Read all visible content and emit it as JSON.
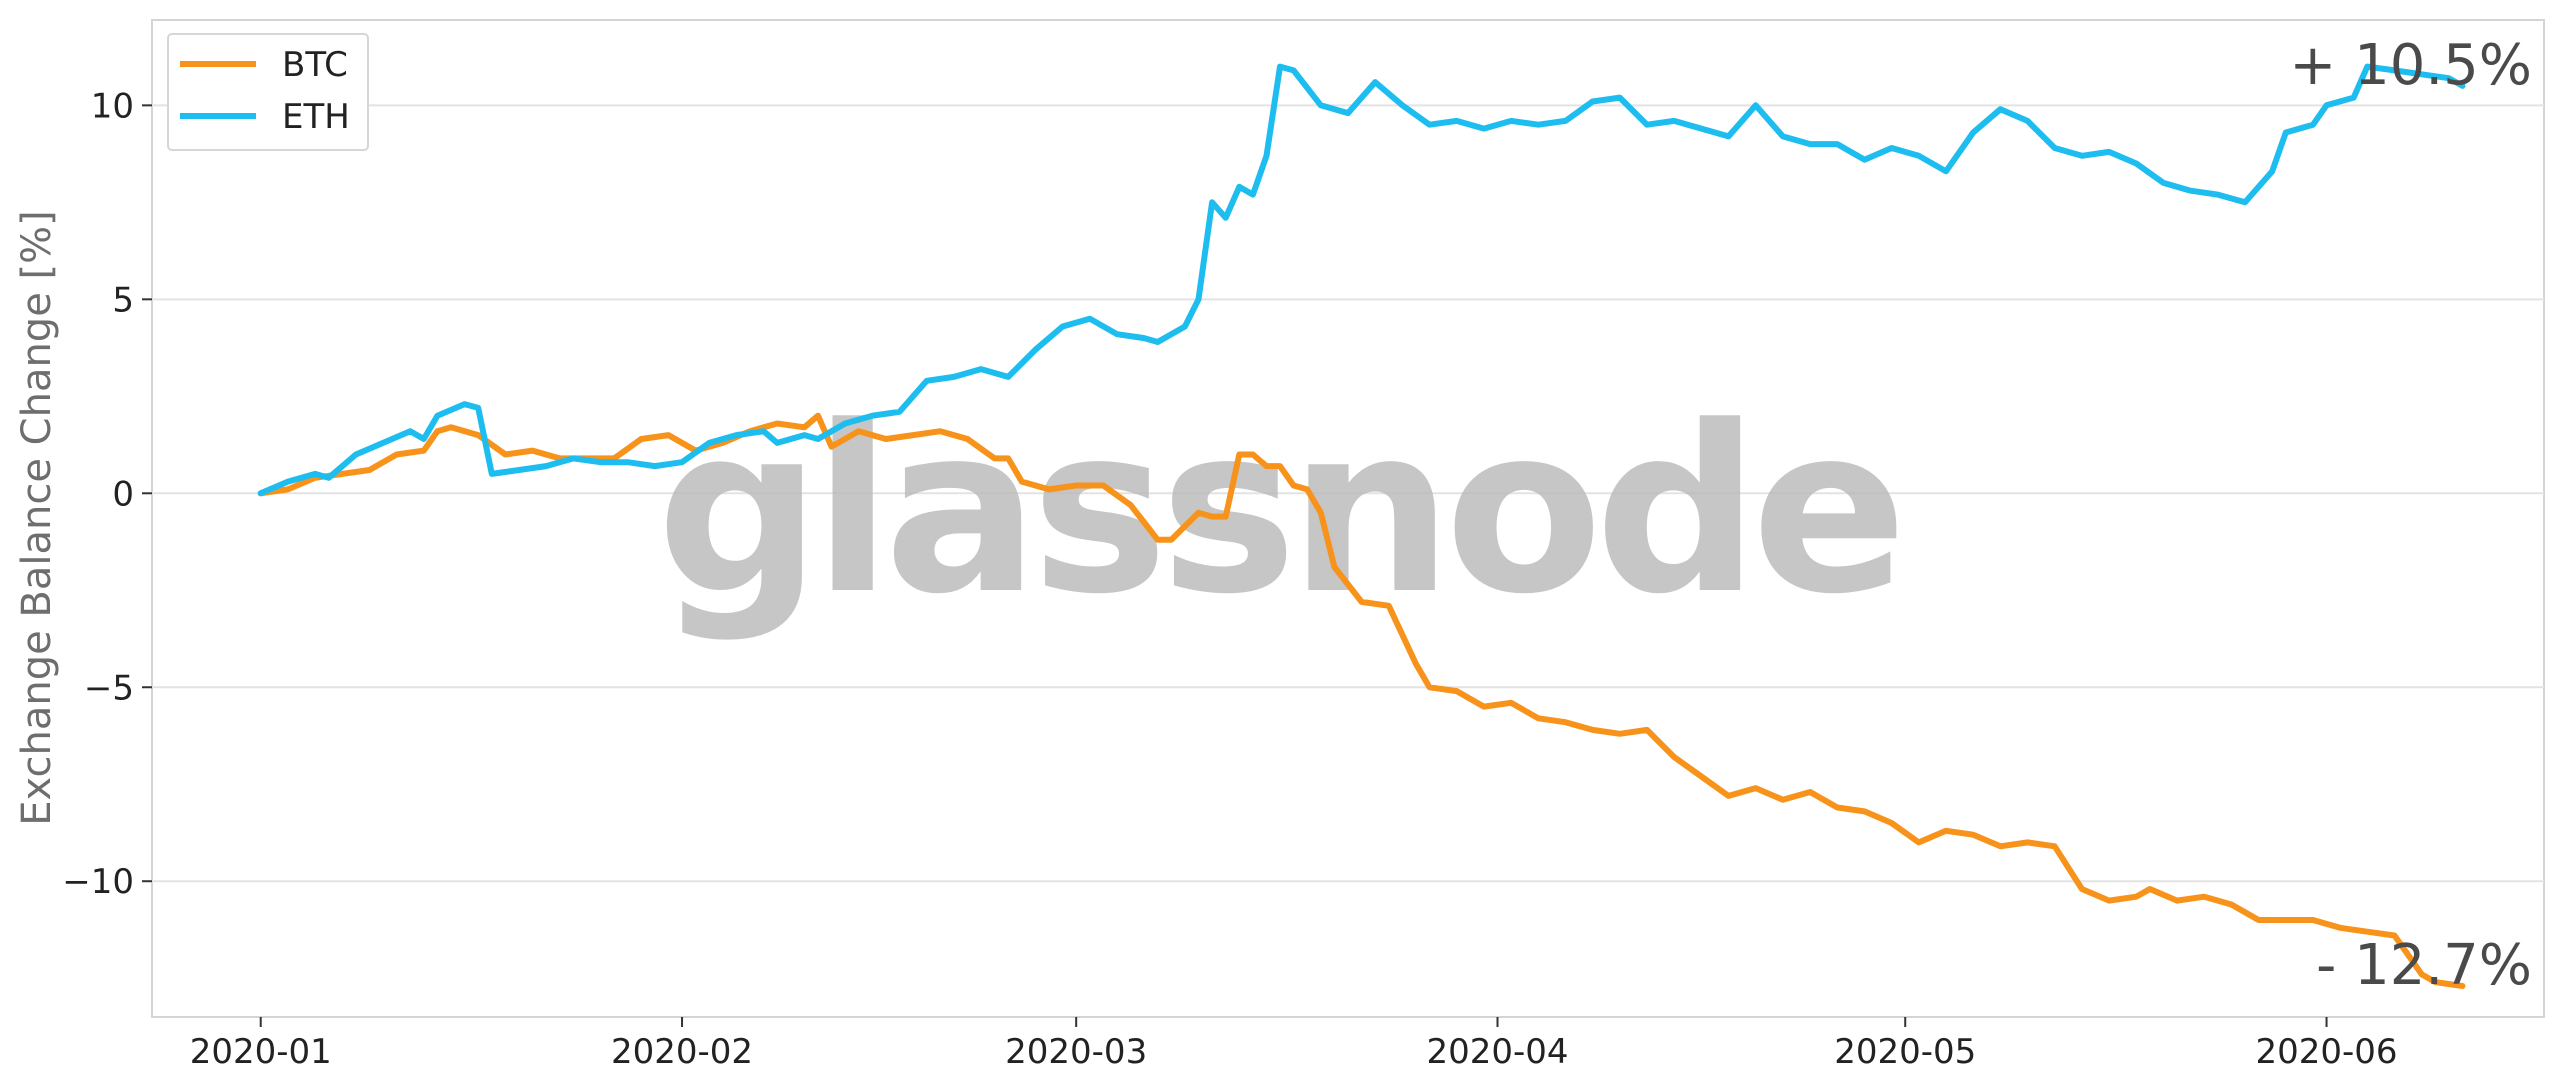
{
  "chart_data": {
    "type": "line",
    "title": "",
    "xlabel": "",
    "ylabel": "Exchange Balance Change [%]",
    "x_ticks": [
      "2020-01-01",
      "2020-02-01",
      "2020-03-01",
      "2020-04-01",
      "2020-05-01",
      "2020-06-01"
    ],
    "x_tick_labels": [
      "2020-01",
      "2020-02",
      "2020-03",
      "2020-04",
      "2020-05",
      "2020-06"
    ],
    "y_ticks": [
      10,
      5,
      0,
      -5,
      -10
    ],
    "y_tick_labels": [
      "10",
      "5",
      "0",
      "−5",
      "−10"
    ],
    "xlim": [
      "2019-12-24",
      "2020-06-17"
    ],
    "ylim": [
      -13.5,
      12.2
    ],
    "grid": "horizontal",
    "legend_position": "top-left",
    "watermark": "glassnode",
    "colors": {
      "BTC": "#f7931a",
      "ETH": "#1ebdf0"
    },
    "series": [
      {
        "name": "BTC",
        "points": [
          [
            "2020-01-01",
            0.0
          ],
          [
            "2020-01-03",
            0.1
          ],
          [
            "2020-01-05",
            0.4
          ],
          [
            "2020-01-07",
            0.5
          ],
          [
            "2020-01-09",
            0.6
          ],
          [
            "2020-01-11",
            1.0
          ],
          [
            "2020-01-13",
            1.1
          ],
          [
            "2020-01-14",
            1.6
          ],
          [
            "2020-01-15",
            1.7
          ],
          [
            "2020-01-17",
            1.5
          ],
          [
            "2020-01-19",
            1.0
          ],
          [
            "2020-01-21",
            1.1
          ],
          [
            "2020-01-23",
            0.9
          ],
          [
            "2020-01-25",
            0.9
          ],
          [
            "2020-01-27",
            0.9
          ],
          [
            "2020-01-29",
            1.4
          ],
          [
            "2020-01-31",
            1.5
          ],
          [
            "2020-02-02",
            1.1
          ],
          [
            "2020-02-04",
            1.3
          ],
          [
            "2020-02-06",
            1.6
          ],
          [
            "2020-02-08",
            1.8
          ],
          [
            "2020-02-10",
            1.7
          ],
          [
            "2020-02-11",
            2.0
          ],
          [
            "2020-02-12",
            1.2
          ],
          [
            "2020-02-14",
            1.6
          ],
          [
            "2020-02-16",
            1.4
          ],
          [
            "2020-02-18",
            1.5
          ],
          [
            "2020-02-20",
            1.6
          ],
          [
            "2020-02-22",
            1.4
          ],
          [
            "2020-02-24",
            0.9
          ],
          [
            "2020-02-25",
            0.9
          ],
          [
            "2020-02-26",
            0.3
          ],
          [
            "2020-02-28",
            0.1
          ],
          [
            "2020-03-01",
            0.2
          ],
          [
            "2020-03-03",
            0.2
          ],
          [
            "2020-03-05",
            -0.3
          ],
          [
            "2020-03-07",
            -1.2
          ],
          [
            "2020-03-08",
            -1.2
          ],
          [
            "2020-03-10",
            -0.5
          ],
          [
            "2020-03-11",
            -0.6
          ],
          [
            "2020-03-12",
            -0.6
          ],
          [
            "2020-03-13",
            1.0
          ],
          [
            "2020-03-14",
            1.0
          ],
          [
            "2020-03-15",
            0.7
          ],
          [
            "2020-03-16",
            0.7
          ],
          [
            "2020-03-17",
            0.2
          ],
          [
            "2020-03-18",
            0.1
          ],
          [
            "2020-03-19",
            -0.5
          ],
          [
            "2020-03-20",
            -1.9
          ],
          [
            "2020-03-22",
            -2.8
          ],
          [
            "2020-03-24",
            -2.9
          ],
          [
            "2020-03-26",
            -4.4
          ],
          [
            "2020-03-27",
            -5.0
          ],
          [
            "2020-03-29",
            -5.1
          ],
          [
            "2020-03-31",
            -5.5
          ],
          [
            "2020-04-02",
            -5.4
          ],
          [
            "2020-04-04",
            -5.8
          ],
          [
            "2020-04-06",
            -5.9
          ],
          [
            "2020-04-08",
            -6.1
          ],
          [
            "2020-04-10",
            -6.2
          ],
          [
            "2020-04-12",
            -6.1
          ],
          [
            "2020-04-14",
            -6.8
          ],
          [
            "2020-04-16",
            -7.3
          ],
          [
            "2020-04-18",
            -7.8
          ],
          [
            "2020-04-20",
            -7.6
          ],
          [
            "2020-04-22",
            -7.9
          ],
          [
            "2020-04-24",
            -7.7
          ],
          [
            "2020-04-26",
            -8.1
          ],
          [
            "2020-04-28",
            -8.2
          ],
          [
            "2020-04-30",
            -8.5
          ],
          [
            "2020-05-02",
            -9.0
          ],
          [
            "2020-05-04",
            -8.7
          ],
          [
            "2020-05-06",
            -8.8
          ],
          [
            "2020-05-08",
            -9.1
          ],
          [
            "2020-05-10",
            -9.0
          ],
          [
            "2020-05-12",
            -9.1
          ],
          [
            "2020-05-14",
            -10.2
          ],
          [
            "2020-05-16",
            -10.5
          ],
          [
            "2020-05-18",
            -10.4
          ],
          [
            "2020-05-19",
            -10.2
          ],
          [
            "2020-05-21",
            -10.5
          ],
          [
            "2020-05-23",
            -10.4
          ],
          [
            "2020-05-25",
            -10.6
          ],
          [
            "2020-05-27",
            -11.0
          ],
          [
            "2020-05-29",
            -11.0
          ],
          [
            "2020-05-31",
            -11.0
          ],
          [
            "2020-06-02",
            -11.2
          ],
          [
            "2020-06-04",
            -11.3
          ],
          [
            "2020-06-06",
            -11.4
          ],
          [
            "2020-06-08",
            -12.4
          ],
          [
            "2020-06-09",
            -12.6
          ],
          [
            "2020-06-11",
            -12.7
          ]
        ]
      },
      {
        "name": "ETH",
        "points": [
          [
            "2020-01-01",
            0.0
          ],
          [
            "2020-01-03",
            0.3
          ],
          [
            "2020-01-05",
            0.5
          ],
          [
            "2020-01-06",
            0.4
          ],
          [
            "2020-01-08",
            1.0
          ],
          [
            "2020-01-10",
            1.3
          ],
          [
            "2020-01-12",
            1.6
          ],
          [
            "2020-01-13",
            1.4
          ],
          [
            "2020-01-14",
            2.0
          ],
          [
            "2020-01-16",
            2.3
          ],
          [
            "2020-01-17",
            2.2
          ],
          [
            "2020-01-18",
            0.5
          ],
          [
            "2020-01-20",
            0.6
          ],
          [
            "2020-01-22",
            0.7
          ],
          [
            "2020-01-24",
            0.9
          ],
          [
            "2020-01-26",
            0.8
          ],
          [
            "2020-01-28",
            0.8
          ],
          [
            "2020-01-30",
            0.7
          ],
          [
            "2020-02-01",
            0.8
          ],
          [
            "2020-02-03",
            1.3
          ],
          [
            "2020-02-05",
            1.5
          ],
          [
            "2020-02-07",
            1.6
          ],
          [
            "2020-02-08",
            1.3
          ],
          [
            "2020-02-10",
            1.5
          ],
          [
            "2020-02-11",
            1.4
          ],
          [
            "2020-02-13",
            1.8
          ],
          [
            "2020-02-15",
            2.0
          ],
          [
            "2020-02-17",
            2.1
          ],
          [
            "2020-02-19",
            2.9
          ],
          [
            "2020-02-21",
            3.0
          ],
          [
            "2020-02-23",
            3.2
          ],
          [
            "2020-02-25",
            3.0
          ],
          [
            "2020-02-27",
            3.7
          ],
          [
            "2020-02-29",
            4.3
          ],
          [
            "2020-03-02",
            4.5
          ],
          [
            "2020-03-04",
            4.1
          ],
          [
            "2020-03-06",
            4.0
          ],
          [
            "2020-03-07",
            3.9
          ],
          [
            "2020-03-09",
            4.3
          ],
          [
            "2020-03-10",
            5.0
          ],
          [
            "2020-03-11",
            7.5
          ],
          [
            "2020-03-12",
            7.1
          ],
          [
            "2020-03-13",
            7.9
          ],
          [
            "2020-03-14",
            7.7
          ],
          [
            "2020-03-15",
            8.7
          ],
          [
            "2020-03-16",
            11.0
          ],
          [
            "2020-03-17",
            10.9
          ],
          [
            "2020-03-19",
            10.0
          ],
          [
            "2020-03-21",
            9.8
          ],
          [
            "2020-03-23",
            10.6
          ],
          [
            "2020-03-25",
            10.0
          ],
          [
            "2020-03-27",
            9.5
          ],
          [
            "2020-03-29",
            9.6
          ],
          [
            "2020-03-31",
            9.4
          ],
          [
            "2020-04-02",
            9.6
          ],
          [
            "2020-04-04",
            9.5
          ],
          [
            "2020-04-06",
            9.6
          ],
          [
            "2020-04-08",
            10.1
          ],
          [
            "2020-04-10",
            10.2
          ],
          [
            "2020-04-12",
            9.5
          ],
          [
            "2020-04-14",
            9.6
          ],
          [
            "2020-04-16",
            9.4
          ],
          [
            "2020-04-18",
            9.2
          ],
          [
            "2020-04-20",
            10.0
          ],
          [
            "2020-04-22",
            9.2
          ],
          [
            "2020-04-24",
            9.0
          ],
          [
            "2020-04-26",
            9.0
          ],
          [
            "2020-04-28",
            8.6
          ],
          [
            "2020-04-30",
            8.9
          ],
          [
            "2020-05-02",
            8.7
          ],
          [
            "2020-05-04",
            8.3
          ],
          [
            "2020-05-06",
            9.3
          ],
          [
            "2020-05-08",
            9.9
          ],
          [
            "2020-05-10",
            9.6
          ],
          [
            "2020-05-12",
            8.9
          ],
          [
            "2020-05-14",
            8.7
          ],
          [
            "2020-05-16",
            8.8
          ],
          [
            "2020-05-18",
            8.5
          ],
          [
            "2020-05-20",
            8.0
          ],
          [
            "2020-05-22",
            7.8
          ],
          [
            "2020-05-24",
            7.7
          ],
          [
            "2020-05-26",
            7.5
          ],
          [
            "2020-05-28",
            8.3
          ],
          [
            "2020-05-29",
            9.3
          ],
          [
            "2020-05-31",
            9.5
          ],
          [
            "2020-06-01",
            10.0
          ],
          [
            "2020-06-03",
            10.2
          ],
          [
            "2020-06-04",
            11.0
          ],
          [
            "2020-06-06",
            10.9
          ],
          [
            "2020-06-08",
            10.8
          ],
          [
            "2020-06-10",
            10.7
          ],
          [
            "2020-06-11",
            10.5
          ]
        ]
      }
    ],
    "annotations": [
      {
        "text": "+ 10.5%",
        "series": "ETH",
        "value": 10.5
      },
      {
        "text": "- 12.7%",
        "series": "BTC",
        "value": -12.7
      }
    ]
  }
}
